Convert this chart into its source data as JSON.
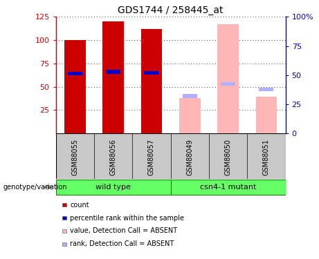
{
  "title": "GDS1744 / 258445_at",
  "categories": [
    "GSM88055",
    "GSM88056",
    "GSM88057",
    "GSM88049",
    "GSM88050",
    "GSM88051"
  ],
  "count_values": [
    100,
    120,
    112,
    null,
    null,
    null
  ],
  "percentile_values": [
    64,
    66,
    65,
    null,
    null,
    null
  ],
  "absent_value_values": [
    null,
    null,
    null,
    38,
    117,
    39
  ],
  "absent_rank_values": [
    null,
    null,
    null,
    40,
    53,
    47
  ],
  "ylim_left": [
    0,
    125
  ],
  "ylim_right": [
    0,
    100
  ],
  "yticks_left": [
    25,
    50,
    75,
    100,
    125
  ],
  "yticks_right": [
    0,
    25,
    50,
    75,
    100
  ],
  "ytick_labels_left": [
    "25",
    "50",
    "75",
    "100",
    "125"
  ],
  "ytick_labels_right": [
    "0",
    "25",
    "50",
    "75",
    "100%"
  ],
  "count_color": "#CC0000",
  "percentile_color": "#0000CC",
  "absent_value_color": "#FFB6B6",
  "absent_rank_color": "#B0B0FF",
  "bg_color": "#FFFFFF",
  "label_area_color": "#C8C8C8",
  "group_color": "#66FF66",
  "group_edge_color": "#008800",
  "groups": [
    {
      "name": "wild type",
      "start": 0,
      "end": 2
    },
    {
      "name": "csn4-1 mutant",
      "start": 3,
      "end": 5
    }
  ],
  "legend_items": [
    {
      "label": "count",
      "color": "#CC0000"
    },
    {
      "label": "percentile rank within the sample",
      "color": "#0000CC"
    },
    {
      "label": "value, Detection Call = ABSENT",
      "color": "#FFB6B6"
    },
    {
      "label": "rank, Detection Call = ABSENT",
      "color": "#B0B0FF"
    }
  ],
  "bar_width": 0.55,
  "percentile_bar_width": 0.38,
  "xlim": [
    -0.5,
    5.5
  ],
  "grid_dotted_color": "#333333"
}
